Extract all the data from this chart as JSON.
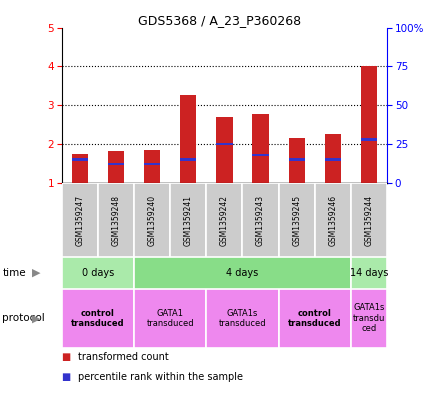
{
  "title": "GDS5368 / A_23_P360268",
  "samples": [
    "GSM1359247",
    "GSM1359248",
    "GSM1359240",
    "GSM1359241",
    "GSM1359242",
    "GSM1359243",
    "GSM1359245",
    "GSM1359246",
    "GSM1359244"
  ],
  "transformed_counts": [
    1.75,
    1.82,
    1.85,
    3.25,
    2.7,
    2.78,
    2.15,
    2.25,
    4.02
  ],
  "percentile_ranks": [
    15,
    12,
    12,
    15,
    25,
    18,
    15,
    15,
    28
  ],
  "ylim_left": [
    1,
    5
  ],
  "ylim_right": [
    0,
    100
  ],
  "yticks_left": [
    1,
    2,
    3,
    4,
    5
  ],
  "yticks_right": [
    0,
    25,
    50,
    75,
    100
  ],
  "yticklabels_right": [
    "0",
    "25",
    "50",
    "75",
    "100%"
  ],
  "bar_color_red": "#cc2222",
  "bar_color_blue": "#3333cc",
  "bg_plot": "#ffffff",
  "bg_sample_row": "#cccccc",
  "time_groups": [
    {
      "label": "0 days",
      "start": 0,
      "end": 2,
      "color": "#aaeaaa"
    },
    {
      "label": "4 days",
      "start": 2,
      "end": 8,
      "color": "#88dd88"
    },
    {
      "label": "14 days",
      "start": 8,
      "end": 9,
      "color": "#aaeaaa"
    }
  ],
  "protocol_groups": [
    {
      "label": "control\ntransduced",
      "start": 0,
      "end": 2,
      "color": "#ee88ee",
      "bold": true
    },
    {
      "label": "GATA1\ntransduced",
      "start": 2,
      "end": 4,
      "color": "#ee88ee",
      "bold": false
    },
    {
      "label": "GATA1s\ntransduced",
      "start": 4,
      "end": 6,
      "color": "#ee88ee",
      "bold": false
    },
    {
      "label": "control\ntransduced",
      "start": 6,
      "end": 8,
      "color": "#ee88ee",
      "bold": true
    },
    {
      "label": "GATA1s\ntransdu\nced",
      "start": 8,
      "end": 9,
      "color": "#ee88ee",
      "bold": false
    }
  ],
  "legend_red_label": "transformed count",
  "legend_blue_label": "percentile rank within the sample"
}
